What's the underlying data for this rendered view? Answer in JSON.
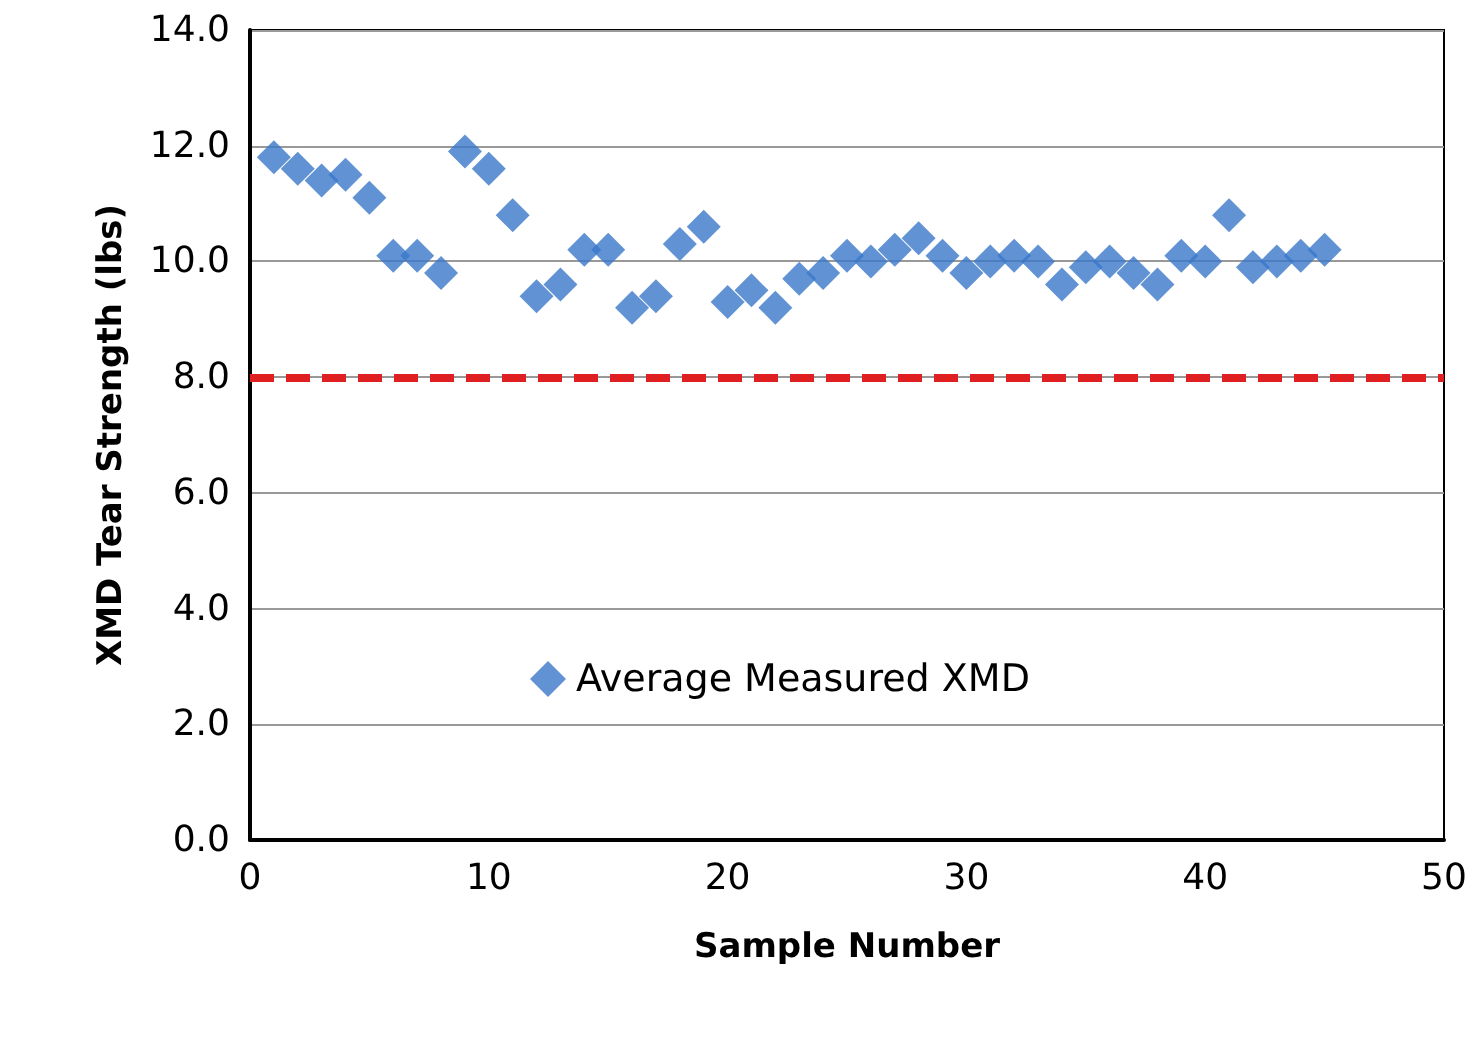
{
  "chart_data": {
    "type": "scatter",
    "xlabel": "Sample Number",
    "ylabel": "XMD Tear Strength (lbs)",
    "x": [
      1,
      2,
      3,
      4,
      5,
      6,
      7,
      8,
      9,
      10,
      11,
      12,
      13,
      14,
      15,
      16,
      17,
      18,
      19,
      20,
      21,
      22,
      23,
      24,
      25,
      26,
      27,
      28,
      29,
      30,
      31,
      32,
      33,
      34,
      35,
      36,
      37,
      38,
      39,
      40,
      41,
      42,
      43,
      44,
      45
    ],
    "series": [
      {
        "name": "Average Measured XMD",
        "color": "#3a78c9",
        "values": [
          11.8,
          11.6,
          11.4,
          11.5,
          11.1,
          10.1,
          10.1,
          9.8,
          11.9,
          11.6,
          10.8,
          9.4,
          9.6,
          10.2,
          10.2,
          9.2,
          9.4,
          10.3,
          10.6,
          9.3,
          9.5,
          9.2,
          9.7,
          9.8,
          10.1,
          10.0,
          10.2,
          10.4,
          10.1,
          9.8,
          10.0,
          10.1,
          10.0,
          9.6,
          9.9,
          10.0,
          9.8,
          9.6,
          10.1,
          10.0,
          10.8,
          9.9,
          10.0,
          10.1,
          10.2
        ]
      }
    ],
    "marker": "diamond",
    "xlim": [
      0,
      50
    ],
    "xticks": [
      0,
      10,
      20,
      30,
      40,
      50
    ],
    "ylim": [
      0,
      14
    ],
    "yticks": [
      {
        "value": 0,
        "label": "0.0"
      },
      {
        "value": 2,
        "label": "2.0"
      },
      {
        "value": 4,
        "label": "4.0"
      },
      {
        "value": 6,
        "label": "6.0"
      },
      {
        "value": 8,
        "label": "8.0"
      },
      {
        "value": 10,
        "label": "10.0"
      },
      {
        "value": 12,
        "label": "12.0"
      },
      {
        "value": 14,
        "label": "14.0"
      }
    ],
    "ref_lines": [
      {
        "axis": "y",
        "value": 8,
        "color": "#e02020",
        "line_style": "dashed"
      }
    ],
    "grid": "y",
    "legend": "bottom"
  }
}
